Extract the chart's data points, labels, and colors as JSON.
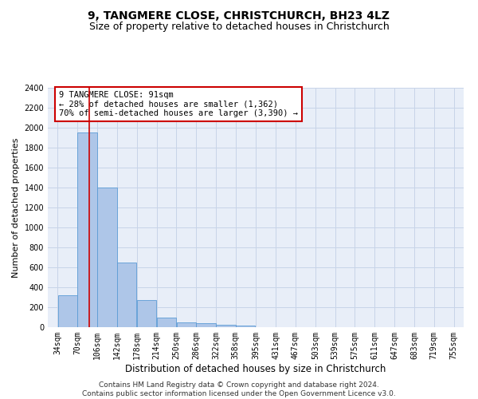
{
  "title1": "9, TANGMERE CLOSE, CHRISTCHURCH, BH23 4LZ",
  "title2": "Size of property relative to detached houses in Christchurch",
  "xlabel": "Distribution of detached houses by size in Christchurch",
  "ylabel": "Number of detached properties",
  "bar_values": [
    320,
    1950,
    1400,
    645,
    270,
    100,
    45,
    38,
    28,
    18,
    0,
    0,
    0,
    0,
    0,
    0,
    0,
    0,
    0,
    0
  ],
  "bin_labels": [
    "34sqm",
    "70sqm",
    "106sqm",
    "142sqm",
    "178sqm",
    "214sqm",
    "250sqm",
    "286sqm",
    "322sqm",
    "358sqm",
    "395sqm",
    "431sqm",
    "467sqm",
    "503sqm",
    "539sqm",
    "575sqm",
    "611sqm",
    "647sqm",
    "683sqm",
    "719sqm",
    "755sqm"
  ],
  "bin_edges": [
    34,
    70,
    106,
    142,
    178,
    214,
    250,
    286,
    322,
    358,
    395,
    431,
    467,
    503,
    539,
    575,
    611,
    647,
    683,
    719,
    755
  ],
  "bar_color": "#aec6e8",
  "bar_edge_color": "#5b9bd5",
  "vline_x": 91,
  "vline_color": "#cc0000",
  "annotation_line1": "9 TANGMERE CLOSE: 91sqm",
  "annotation_line2": "← 28% of detached houses are smaller (1,362)",
  "annotation_line3": "70% of semi-detached houses are larger (3,390) →",
  "annotation_box_color": "#cc0000",
  "ylim": [
    0,
    2400
  ],
  "yticks": [
    0,
    200,
    400,
    600,
    800,
    1000,
    1200,
    1400,
    1600,
    1800,
    2000,
    2200,
    2400
  ],
  "grid_color": "#c8d4e8",
  "bg_color": "#e8eef8",
  "footer": "Contains HM Land Registry data © Crown copyright and database right 2024.\nContains public sector information licensed under the Open Government Licence v3.0.",
  "title1_fontsize": 10,
  "title2_fontsize": 9,
  "xlabel_fontsize": 8.5,
  "ylabel_fontsize": 8,
  "tick_fontsize": 7,
  "annotation_fontsize": 7.5,
  "footer_fontsize": 6.5
}
